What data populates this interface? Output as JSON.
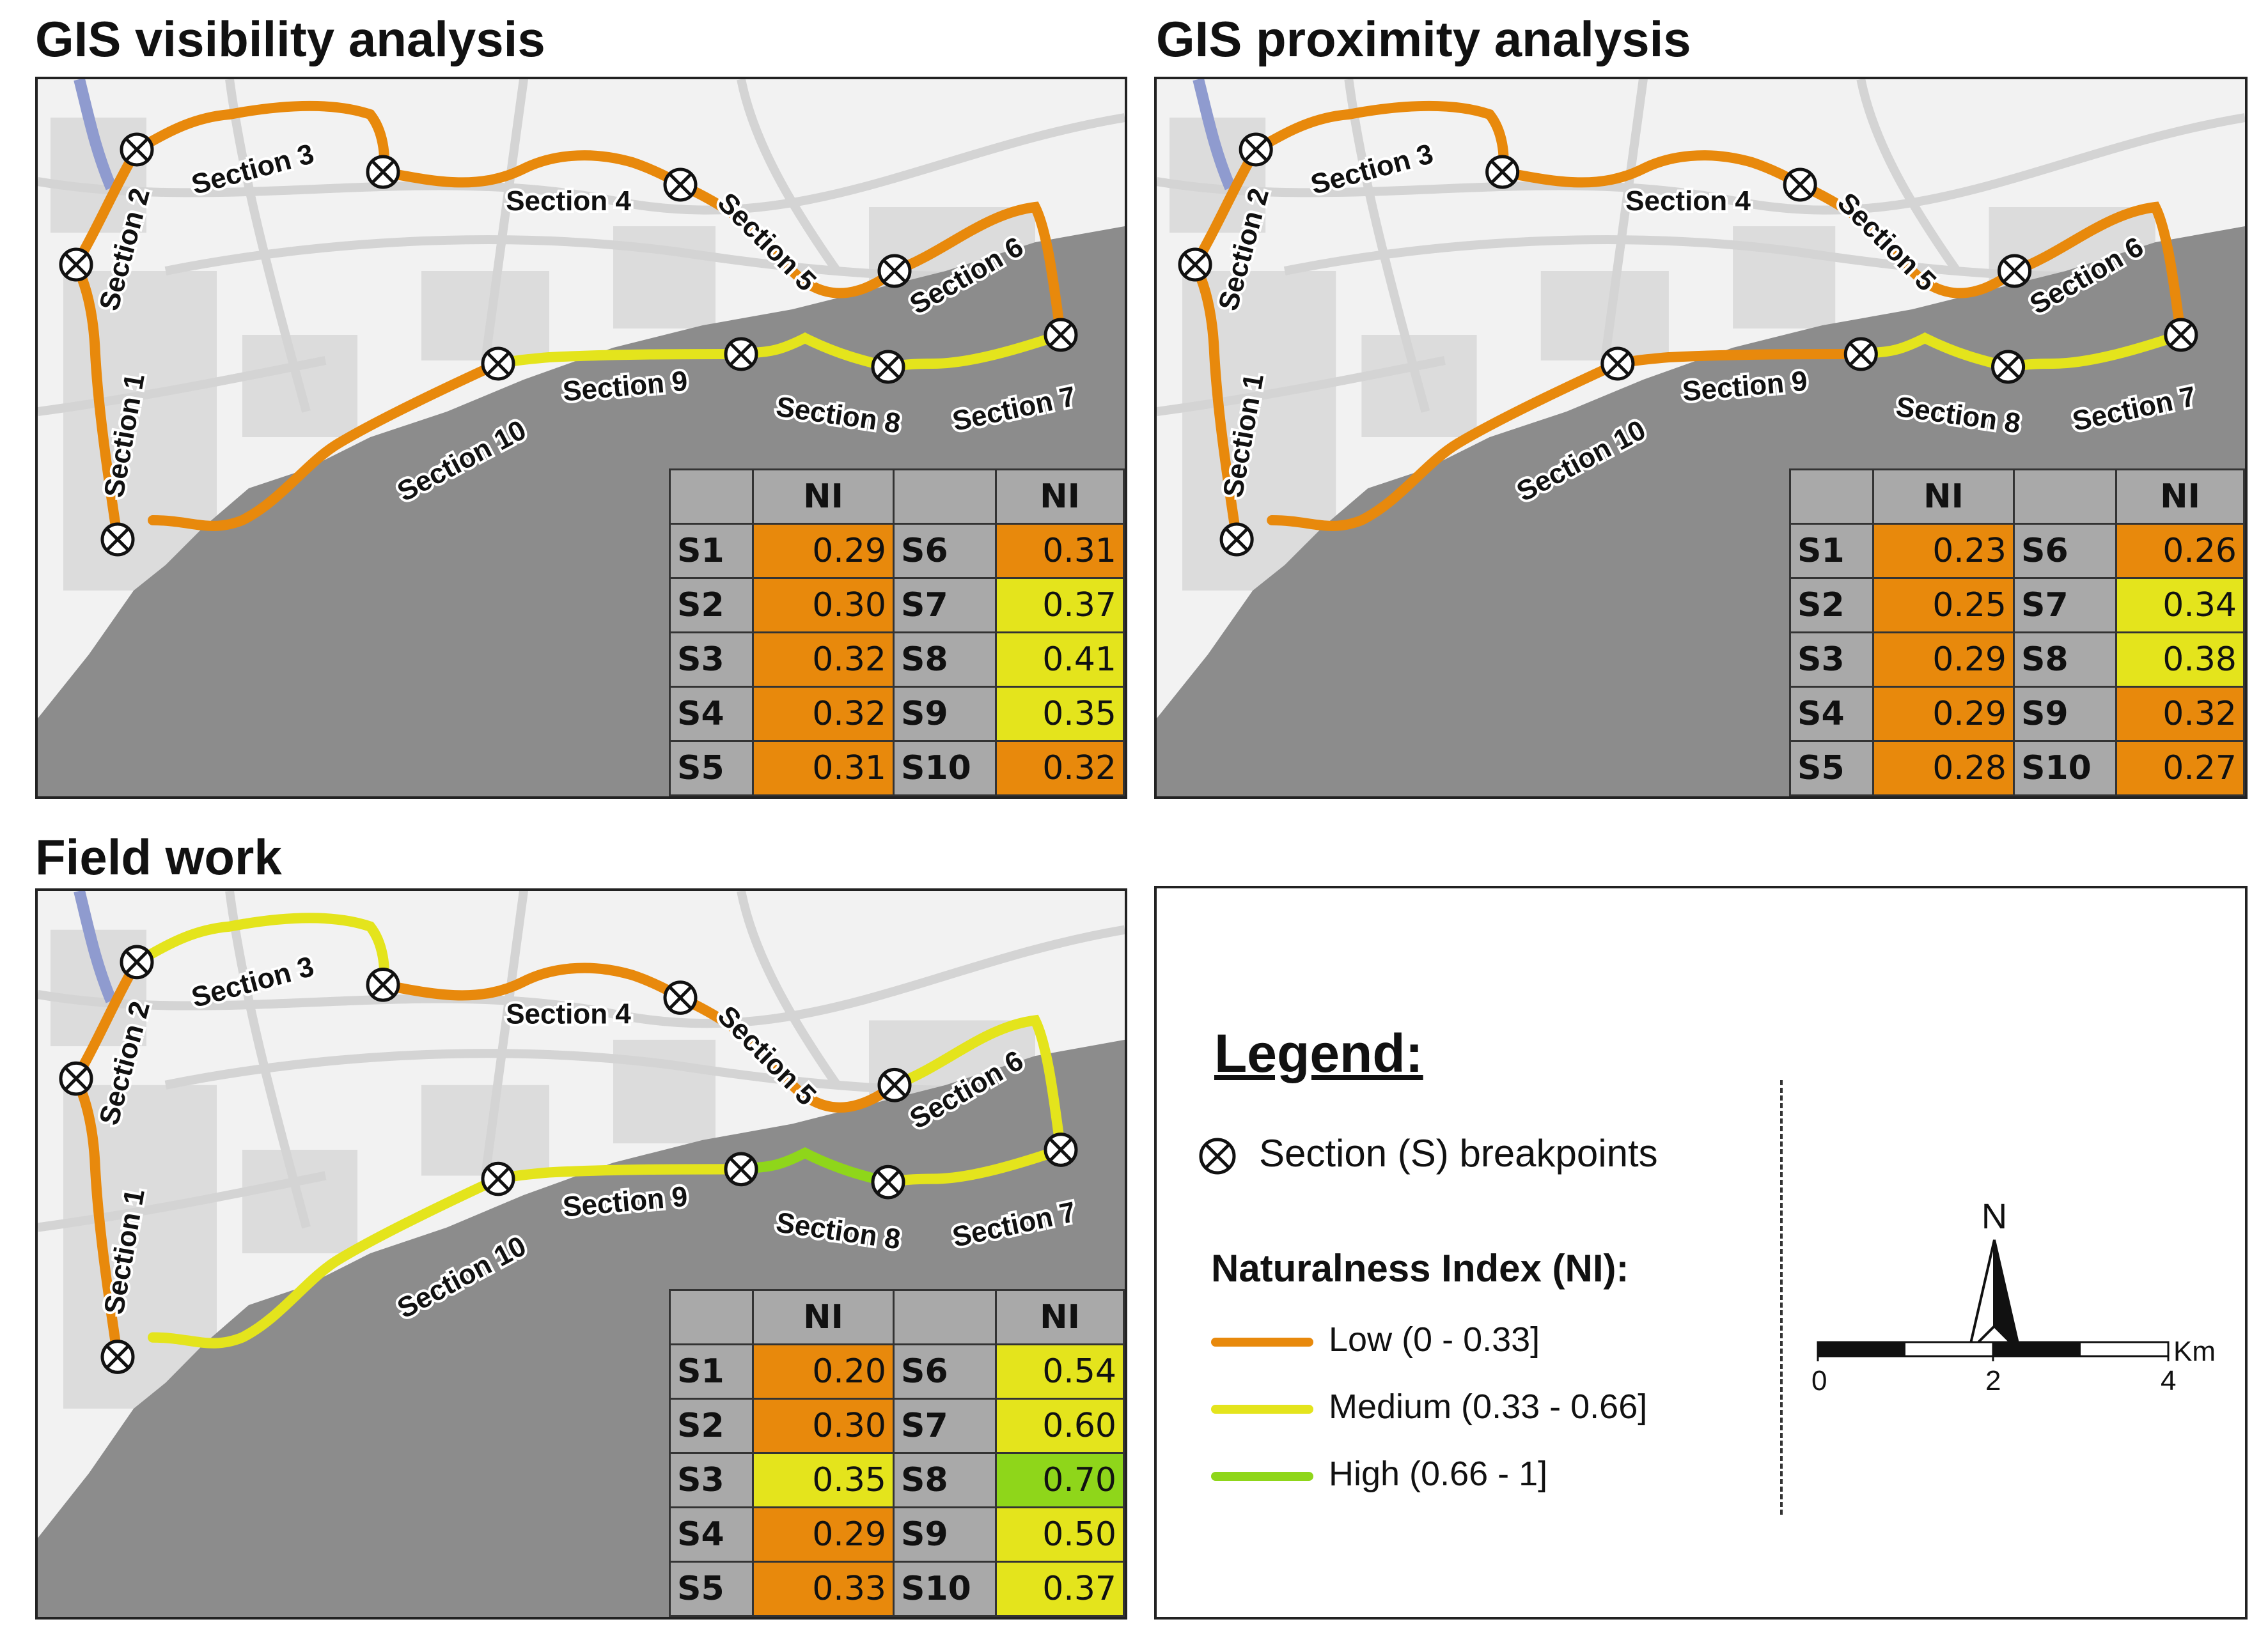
{
  "colors": {
    "low": "#e8890c",
    "medium": "#e4e41c",
    "high": "#8fd61a",
    "sea": "#8c8c8c",
    "land": "#f2f2f2",
    "river": "#8f9bcf"
  },
  "sections_labels": [
    "Section 1",
    "Section 2",
    "Section 3",
    "Section 4",
    "Section 5",
    "Section 6",
    "Section 7",
    "Section 8",
    "Section 9",
    "Section 10"
  ],
  "table_header": "NI",
  "panels": [
    {
      "title": "GIS visibility analysis",
      "section_classes": [
        "low",
        "low",
        "low",
        "low",
        "low",
        "low",
        "medium",
        "medium",
        "medium",
        "low"
      ],
      "rows": [
        {
          "s1": "S1",
          "v1": "0.29",
          "c1": "low",
          "s2": "S6",
          "v2": "0.31",
          "c2": "low"
        },
        {
          "s1": "S2",
          "v1": "0.30",
          "c1": "low",
          "s2": "S7",
          "v2": "0.37",
          "c2": "medium"
        },
        {
          "s1": "S3",
          "v1": "0.32",
          "c1": "low",
          "s2": "S8",
          "v2": "0.41",
          "c2": "medium"
        },
        {
          "s1": "S4",
          "v1": "0.32",
          "c1": "low",
          "s2": "S9",
          "v2": "0.35",
          "c2": "medium"
        },
        {
          "s1": "S5",
          "v1": "0.31",
          "c1": "low",
          "s2": "S10",
          "v2": "0.32",
          "c2": "low"
        }
      ]
    },
    {
      "title": "GIS proximity analysis",
      "section_classes": [
        "low",
        "low",
        "low",
        "low",
        "low",
        "low",
        "medium",
        "medium",
        "low",
        "low"
      ],
      "rows": [
        {
          "s1": "S1",
          "v1": "0.23",
          "c1": "low",
          "s2": "S6",
          "v2": "0.26",
          "c2": "low"
        },
        {
          "s1": "S2",
          "v1": "0.25",
          "c1": "low",
          "s2": "S7",
          "v2": "0.34",
          "c2": "medium"
        },
        {
          "s1": "S3",
          "v1": "0.29",
          "c1": "low",
          "s2": "S8",
          "v2": "0.38",
          "c2": "medium"
        },
        {
          "s1": "S4",
          "v1": "0.29",
          "c1": "low",
          "s2": "S9",
          "v2": "0.32",
          "c2": "low"
        },
        {
          "s1": "S5",
          "v1": "0.28",
          "c1": "low",
          "s2": "S10",
          "v2": "0.27",
          "c2": "low"
        }
      ]
    },
    {
      "title": "Field work",
      "section_classes": [
        "low",
        "low",
        "medium",
        "low",
        "low",
        "medium",
        "medium",
        "high",
        "medium",
        "medium"
      ],
      "rows": [
        {
          "s1": "S1",
          "v1": "0.20",
          "c1": "low",
          "s2": "S6",
          "v2": "0.54",
          "c2": "medium"
        },
        {
          "s1": "S2",
          "v1": "0.30",
          "c1": "low",
          "s2": "S7",
          "v2": "0.60",
          "c2": "medium"
        },
        {
          "s1": "S3",
          "v1": "0.35",
          "c1": "medium",
          "s2": "S8",
          "v2": "0.70",
          "c2": "high"
        },
        {
          "s1": "S4",
          "v1": "0.29",
          "c1": "low",
          "s2": "S9",
          "v2": "0.50",
          "c2": "medium"
        },
        {
          "s1": "S5",
          "v1": "0.33",
          "c1": "low",
          "s2": "S10",
          "v2": "0.37",
          "c2": "medium"
        }
      ]
    }
  ],
  "legend": {
    "title": "Legend:",
    "breakpoints": "Section (S) breakpoints",
    "ni_title": "Naturalness Index (NI):",
    "low": "Low (0 - 0.33]",
    "medium": "Medium (0.33 - 0.66]",
    "high": "High (0.66 - 1]",
    "north": "N",
    "scale_unit": "Km",
    "scale_ticks": [
      "0",
      "2",
      "4"
    ]
  }
}
